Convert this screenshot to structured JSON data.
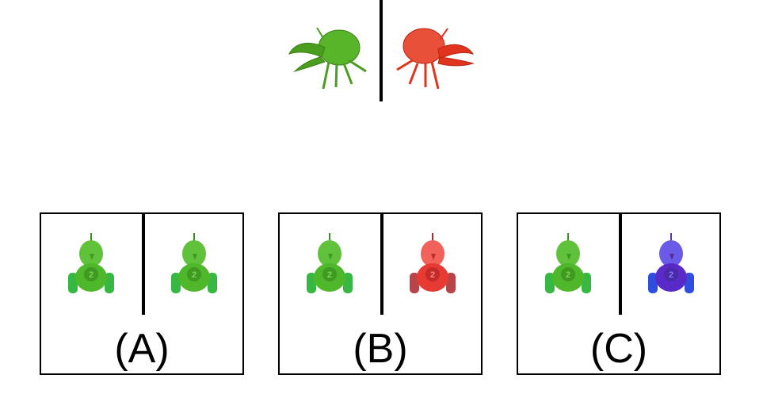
{
  "top": {
    "items": [
      {
        "icon": "hermit-crab-icon",
        "color": "#4a9e1f"
      },
      {
        "icon": "hermit-crab-icon",
        "color": "#e0341e"
      }
    ]
  },
  "options": [
    {
      "label": "(A)",
      "left_robot_color": "#4fb82a",
      "right_robot_color": "#4fb82a"
    },
    {
      "label": "(B)",
      "left_robot_color": "#4fb82a",
      "right_robot_color": "#e63a32"
    },
    {
      "label": "(C)",
      "left_robot_color": "#4fb82a",
      "right_robot_color": "#4a3fe0"
    }
  ]
}
